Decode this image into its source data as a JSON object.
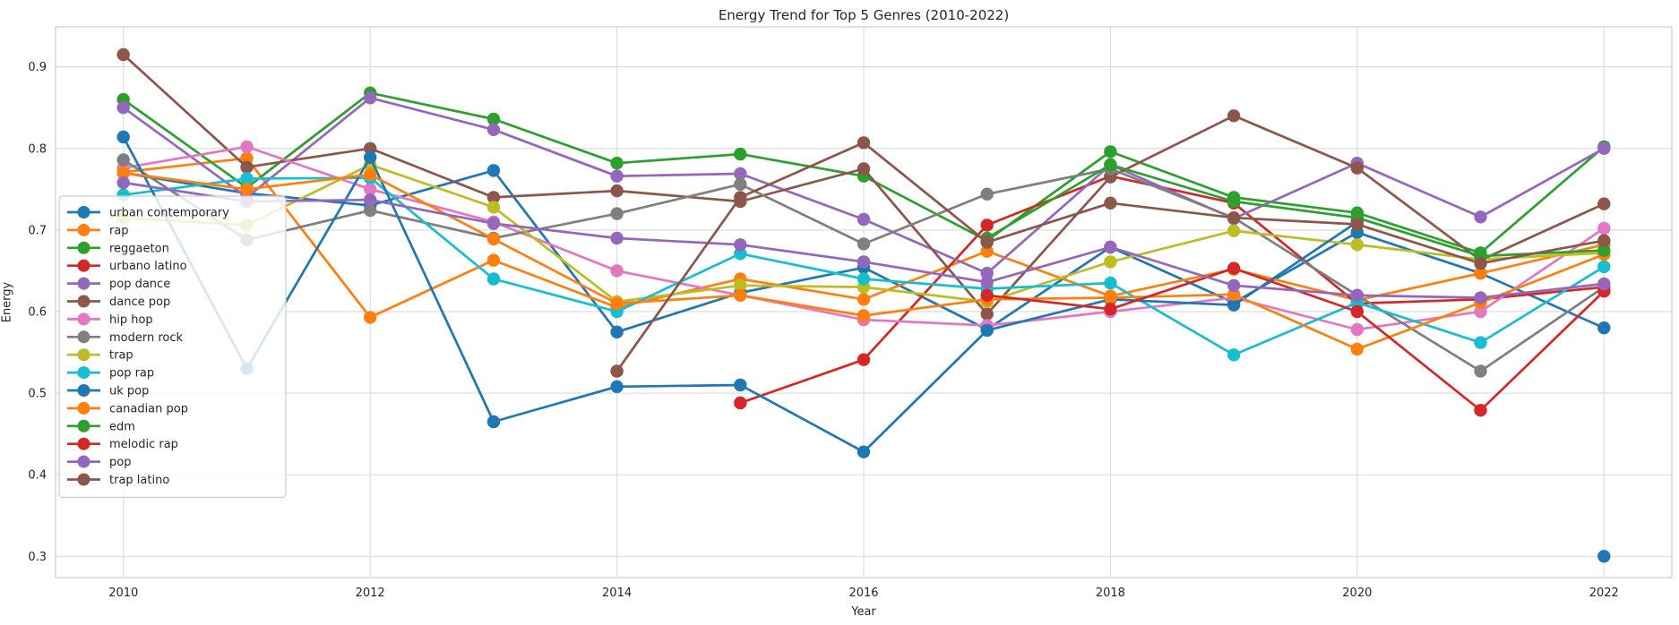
{
  "title": "Energy Trend for Top 5 Genres (2010-2022)",
  "chart_data": {
    "type": "line",
    "title": "Energy Trend for Top 5 Genres (2010-2022)",
    "xlabel": "Year",
    "ylabel": "Energy",
    "x": [
      2010,
      2011,
      2012,
      2013,
      2014,
      2015,
      2016,
      2017,
      2018,
      2019,
      2020,
      2021,
      2022
    ],
    "xticks": [
      2010,
      2012,
      2014,
      2016,
      2018,
      2020,
      2022
    ],
    "yticks": [
      0.3,
      0.4,
      0.5,
      0.6,
      0.7,
      0.8,
      0.9
    ],
    "xlim": [
      2009.45,
      2022.55
    ],
    "ylim": [
      0.274,
      0.949
    ],
    "grid": true,
    "legend_position": "center left",
    "palette": [
      "#1f77b4",
      "#ff7f0e",
      "#2ca02c",
      "#d62728",
      "#9467bd",
      "#8c564b",
      "#e377c2",
      "#7f7f7f",
      "#bcbd22",
      "#17becf"
    ],
    "series": [
      {
        "name": "urban contemporary",
        "color": "#1f77b4",
        "values": [
          0.77,
          0.745,
          0.73,
          0.773,
          0.575,
          0.623,
          0.654,
          0.578,
          0.679,
          0.611,
          0.697,
          0.647,
          0.58
        ]
      },
      {
        "name": "rap",
        "color": "#ff7f0e",
        "values": [
          0.771,
          0.788,
          0.593,
          0.663,
          0.605,
          0.64,
          0.615,
          0.674,
          0.619,
          0.652,
          0.614,
          0.647,
          0.682
        ]
      },
      {
        "name": "reggaeton",
        "color": "#2ca02c",
        "values": [
          0.86,
          0.752,
          0.868,
          0.836,
          0.782,
          0.793,
          0.766,
          0.687,
          0.796,
          0.74,
          0.721,
          0.672,
          0.802
        ]
      },
      {
        "name": "urbano latino",
        "color": "#d62728",
        "values": [
          null,
          null,
          null,
          null,
          null,
          0.488,
          0.541,
          0.706,
          0.766,
          0.733,
          0.61,
          0.615,
          0.63
        ]
      },
      {
        "name": "pop dance",
        "color": "#9467bd",
        "values": [
          0.85,
          0.74,
          0.862,
          0.823,
          0.766,
          0.769,
          0.713,
          0.647,
          0.78,
          0.714,
          0.782,
          0.716,
          0.8
        ]
      },
      {
        "name": "dance pop",
        "color": "#8c564b",
        "values": [
          0.915,
          0.777,
          0.8,
          0.74,
          0.748,
          0.735,
          0.775,
          0.597,
          0.765,
          0.84,
          0.776,
          0.663,
          0.732
        ]
      },
      {
        "name": "hip hop",
        "color": "#e377c2",
        "values": [
          0.776,
          0.802,
          0.75,
          0.71,
          0.65,
          0.62,
          0.59,
          0.583,
          0.6,
          0.617,
          0.578,
          0.6,
          0.702
        ]
      },
      {
        "name": "modern rock",
        "color": "#7f7f7f",
        "values": [
          0.786,
          0.688,
          0.724,
          0.69,
          0.72,
          0.756,
          0.683,
          0.744,
          0.775,
          0.715,
          0.62,
          0.527,
          0.63
        ]
      },
      {
        "name": "trap",
        "color": "#bcbd22",
        "values": [
          0.715,
          0.706,
          0.78,
          0.728,
          0.612,
          0.632,
          0.63,
          0.612,
          0.661,
          0.699,
          0.682,
          0.664,
          0.672
        ]
      },
      {
        "name": "pop rap",
        "color": "#17becf",
        "values": [
          0.743,
          0.763,
          0.764,
          0.64,
          0.6,
          0.671,
          0.64,
          0.628,
          0.635,
          0.547,
          0.611,
          0.562,
          0.655
        ]
      },
      {
        "name": "uk pop",
        "color": "#1f77b4",
        "values": [
          0.814,
          0.53,
          0.789,
          0.465,
          0.508,
          0.51,
          0.428,
          0.577,
          0.615,
          0.608,
          0.71,
          null,
          0.3
        ]
      },
      {
        "name": "canadian pop",
        "color": "#ff7f0e",
        "values": [
          0.77,
          0.75,
          0.768,
          0.689,
          0.61,
          0.62,
          0.595,
          0.615,
          0.617,
          0.621,
          0.554,
          0.611,
          0.67
        ]
      },
      {
        "name": "edm",
        "color": "#2ca02c",
        "values": [
          null,
          null,
          null,
          null,
          null,
          null,
          null,
          0.69,
          0.78,
          0.735,
          0.715,
          0.668,
          0.675
        ]
      },
      {
        "name": "melodic rap",
        "color": "#d62728",
        "values": [
          null,
          null,
          null,
          null,
          null,
          null,
          null,
          0.62,
          0.603,
          0.653,
          0.6,
          0.479,
          0.625
        ]
      },
      {
        "name": "pop",
        "color": "#9467bd",
        "values": [
          0.758,
          0.735,
          0.737,
          0.708,
          0.69,
          0.682,
          0.661,
          0.636,
          0.679,
          0.632,
          0.62,
          0.617,
          0.634
        ]
      },
      {
        "name": "trap latino",
        "color": "#8c564b",
        "values": [
          null,
          null,
          null,
          null,
          0.527,
          0.74,
          0.807,
          0.685,
          0.733,
          0.715,
          0.707,
          0.659,
          0.687
        ]
      }
    ]
  },
  "style": {
    "grid_color": "#dddddd",
    "spine_color": "#cccccc",
    "tick_color": "#262626",
    "legend_border": "#cccccc",
    "legend_bg_alpha": 0.82
  }
}
